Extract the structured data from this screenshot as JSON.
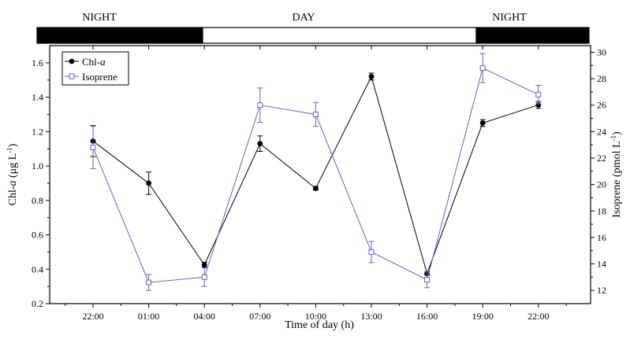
{
  "chart_data": {
    "type": "line",
    "xlabel": "Time of day (h)",
    "ylabel_left": "Chl-a (μg L-1)",
    "ylabel_right": "Isoprene (pmol L-1)",
    "categories": [
      "22:00",
      "01:00",
      "04:00",
      "07:00",
      "10:00",
      "13:00",
      "16:00",
      "19:00",
      "22:00"
    ],
    "y_left": {
      "range": [
        0.2,
        1.7
      ],
      "ticks": [
        "0.2",
        "0.4",
        "0.6",
        "0.8",
        "1.0",
        "1.2",
        "1.4",
        "1.6"
      ]
    },
    "y_right": {
      "range": [
        11,
        30.5
      ],
      "ticks": [
        "12",
        "14",
        "16",
        "18",
        "20",
        "22",
        "24",
        "26",
        "28",
        "30"
      ]
    },
    "period_bar": {
      "segments": [
        {
          "label": "NIGHT",
          "from": 0,
          "to": 4.5,
          "shade": "dark"
        },
        {
          "label": "DAY",
          "from": 4.5,
          "to": 16.5,
          "shade": "light"
        },
        {
          "label": "NIGHT",
          "from": 16.5,
          "to": 24,
          "shade": "dark"
        }
      ]
    },
    "series": [
      {
        "name": "Chl-a",
        "axis": "left",
        "marker": "filled-circle",
        "color": "#000000",
        "values": [
          1.145,
          0.9,
          0.425,
          1.13,
          0.87,
          1.52,
          0.375,
          1.25,
          1.355
        ],
        "errors": [
          0.09,
          0.065,
          0.015,
          0.045,
          0.01,
          0.02,
          0.01,
          0.02,
          0.02
        ]
      },
      {
        "name": "Isoprene",
        "axis": "right",
        "marker": "open-square",
        "color": "#6a5fbf",
        "values": [
          22.8,
          12.6,
          13.0,
          26.0,
          25.3,
          14.9,
          12.8,
          28.8,
          26.8
        ],
        "errors": [
          1.6,
          0.6,
          0.7,
          1.3,
          0.9,
          0.8,
          0.6,
          1.1,
          0.7
        ]
      }
    ],
    "legend": {
      "placement": "top-left",
      "entries": [
        "Chl-",
        "Isoprene"
      ],
      "italic_suffix": [
        "a",
        ""
      ]
    },
    "grid": false
  }
}
